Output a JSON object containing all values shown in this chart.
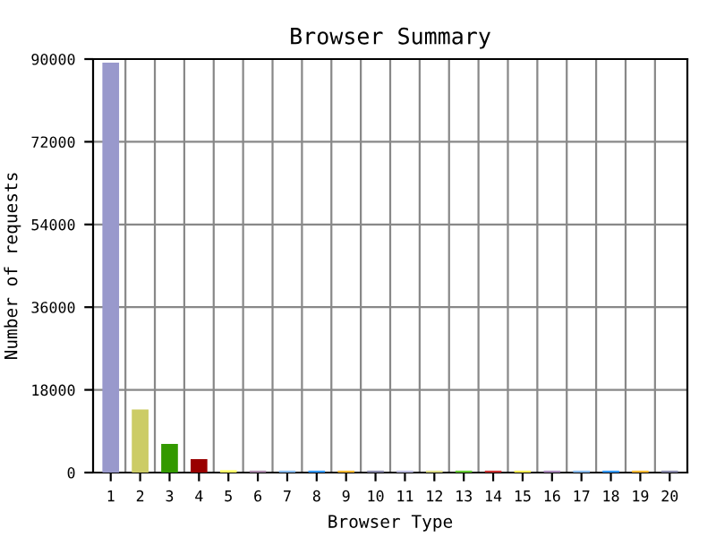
{
  "chart_data": {
    "type": "bar",
    "title": "Browser Summary",
    "xlabel": "Browser Type",
    "ylabel": "Number of requests",
    "categories": [
      "1",
      "2",
      "3",
      "4",
      "5",
      "6",
      "7",
      "8",
      "9",
      "10",
      "11",
      "12",
      "13",
      "14",
      "15",
      "16",
      "17",
      "18",
      "19",
      "20"
    ],
    "values": [
      89000,
      13500,
      6000,
      2700,
      300,
      200,
      200,
      200,
      200,
      200,
      200,
      200,
      200,
      200,
      200,
      200,
      200,
      200,
      200,
      200
    ],
    "colors": [
      "#9999cc",
      "#cccc66",
      "#339900",
      "#990000",
      "#ffff66",
      "#aa88aa",
      "#88bbee",
      "#3399ff",
      "#ffbb33",
      "#8888aa",
      "#bbbbdd",
      "#dddd88",
      "#66cc33",
      "#cc3333",
      "#ffee55",
      "#aa88bb",
      "#88bbee",
      "#3399ff",
      "#ffbb33",
      "#8888aa"
    ],
    "ylim": [
      0,
      90000
    ],
    "yticks": [
      0,
      18000,
      36000,
      54000,
      72000,
      90000
    ],
    "grid": true
  }
}
